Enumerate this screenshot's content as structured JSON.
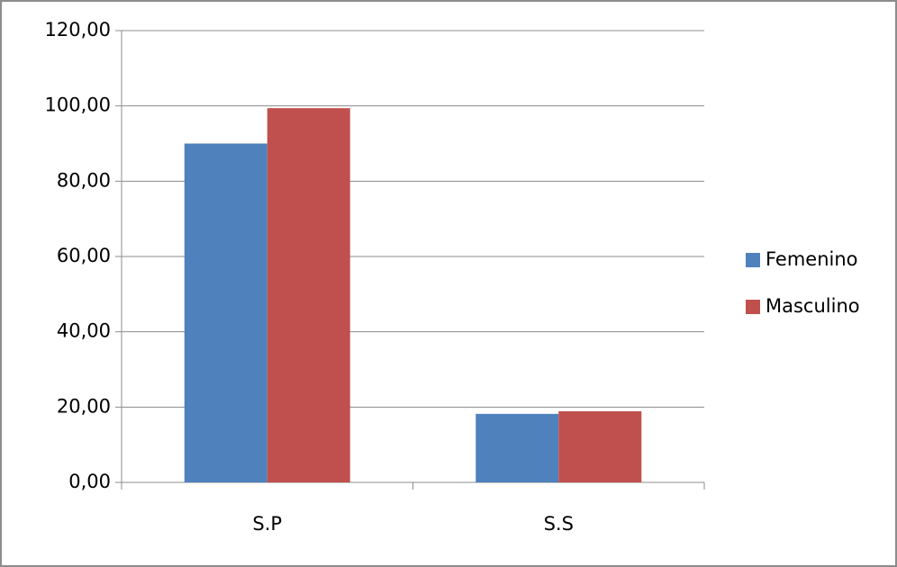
{
  "chart_data": {
    "type": "bar",
    "categories": [
      "S.P",
      "S.S"
    ],
    "series": [
      {
        "name": "Femenino",
        "color": "#4f81bd",
        "values": [
          90,
          18.2
        ]
      },
      {
        "name": "Masculino",
        "color": "#c0504d",
        "values": [
          99.4,
          18.9
        ]
      }
    ],
    "ylim": [
      0,
      120
    ],
    "yticks": [
      {
        "value": 0,
        "label": "0,00"
      },
      {
        "value": 20,
        "label": "20,00"
      },
      {
        "value": 40,
        "label": "40,00"
      },
      {
        "value": 60,
        "label": "60,00"
      },
      {
        "value": 80,
        "label": "80,00"
      },
      {
        "value": 100,
        "label": "100,00"
      },
      {
        "value": 120,
        "label": "120,00"
      }
    ],
    "grid": true,
    "legend": "right"
  }
}
